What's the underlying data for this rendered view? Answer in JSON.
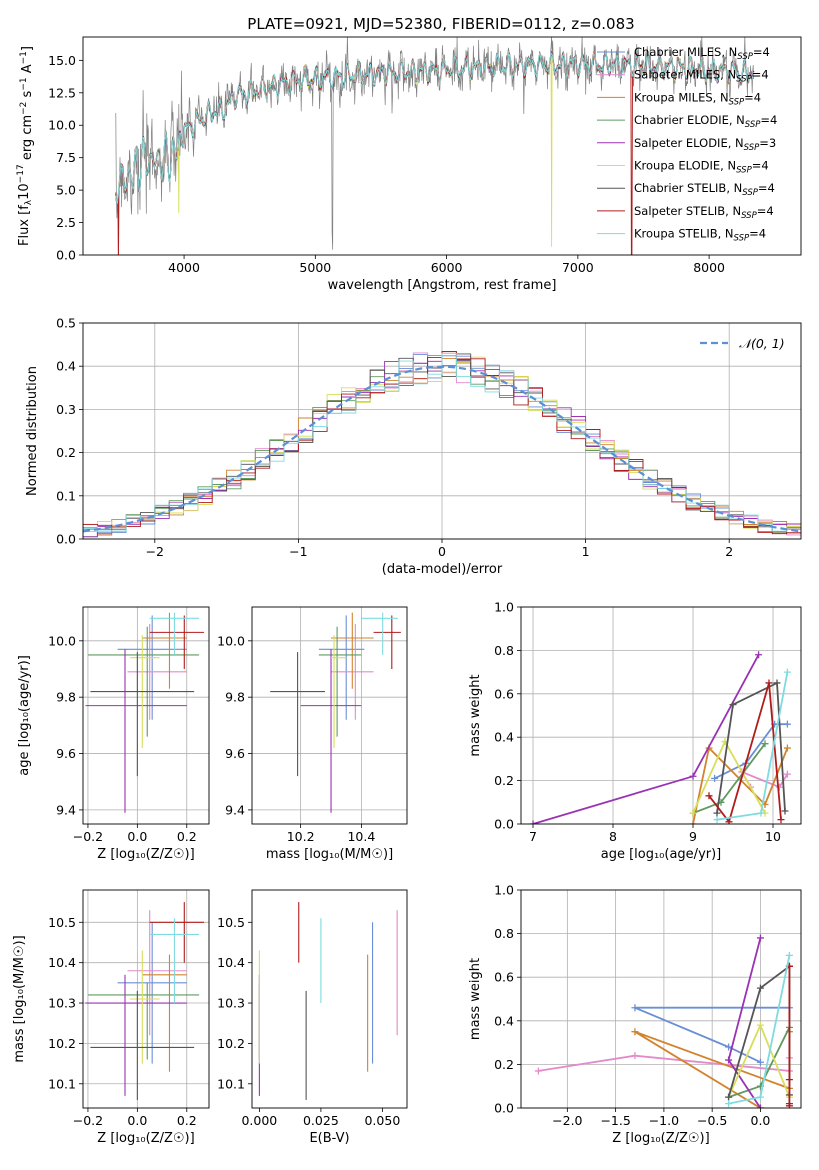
{
  "figure": {
    "title": "PLATE=0921, MJD=52380, FIBERID=0112, z=0.083"
  },
  "chart_data": [
    {
      "id": "spectrum",
      "type": "line",
      "title": "PLATE=0921, MJD=52380, FIBERID=0112, z=0.083",
      "xlabel": "wavelength [Angstrom, rest frame]",
      "ylabel_parts": [
        "Flux [f",
        "λ",
        "10",
        "−17",
        " erg cm",
        "−2",
        " s",
        "−1",
        " A",
        "−1",
        "]"
      ],
      "xlim": [
        3230,
        8700
      ],
      "ylim": [
        0,
        16.8
      ],
      "xticks": [
        4000,
        5000,
        6000,
        7000,
        8000
      ],
      "yticks": [
        0.0,
        2.5,
        5.0,
        7.5,
        10.0,
        12.5,
        15.0
      ],
      "grid": false,
      "legend_position": "right",
      "legend": [
        {
          "label": "Chabrier MILES, N",
          "sub": "SSP",
          "tail": "=4",
          "color": "#6a8fd6"
        },
        {
          "label": "Salpeter MILES, N",
          "sub": "SSP",
          "tail": "=4",
          "color": "#e48acb"
        },
        {
          "label": "Kroupa MILES, N",
          "sub": "SSP",
          "tail": "=4",
          "color": "#d2832e"
        },
        {
          "label": "Chabrier ELODIE, N",
          "sub": "SSP",
          "tail": "=4",
          "color": "#5f9a5f"
        },
        {
          "label": "Salpeter ELODIE, N",
          "sub": "SSP",
          "tail": "=3",
          "color": "#9a32b5"
        },
        {
          "label": "Kroupa ELODIE, N",
          "sub": "SSP",
          "tail": "=4",
          "color": "#d8de5c"
        },
        {
          "label": "Chabrier STELIB, N",
          "sub": "SSP",
          "tail": "=4",
          "color": "#555555"
        },
        {
          "label": "Salpeter STELIB, N",
          "sub": "SSP",
          "tail": "=4",
          "color": "#b01c1c"
        },
        {
          "label": "Kroupa STELIB, N",
          "sub": "SSP",
          "tail": "=4",
          "color": "#7fdbe0"
        }
      ],
      "data_color": "#808080",
      "continuum": [
        [
          3500,
          5.6
        ],
        [
          3600,
          6.2
        ],
        [
          3700,
          7.4
        ],
        [
          3800,
          7.2
        ],
        [
          3900,
          7.6
        ],
        [
          3960,
          8.4
        ],
        [
          4000,
          9.6
        ],
        [
          4100,
          10.2
        ],
        [
          4200,
          11.0
        ],
        [
          4300,
          11.2
        ],
        [
          4400,
          12.3
        ],
        [
          4500,
          12.6
        ],
        [
          4700,
          13.1
        ],
        [
          4900,
          13.5
        ],
        [
          5200,
          13.8
        ],
        [
          5500,
          14.0
        ],
        [
          6000,
          14.3
        ],
        [
          6500,
          14.6
        ],
        [
          7000,
          14.7
        ],
        [
          7500,
          14.6
        ],
        [
          8000,
          14.3
        ],
        [
          8300,
          14.0
        ]
      ],
      "data_range": [
        3480,
        8340
      ],
      "model_range": [
        3480,
        8340
      ],
      "dips": [
        {
          "x": 5130,
          "depth": 12.5,
          "series": "data"
        },
        {
          "x": 6800,
          "depth": 15.0,
          "series": "Kroupa ELODIE"
        },
        {
          "x": 7410,
          "depth": 14.6,
          "series": "Salpeter STELIB"
        },
        {
          "x": 3500,
          "depth": 5.6,
          "series": "Salpeter STELIB"
        },
        {
          "x": 3960,
          "depth": 5.8,
          "series": "Kroupa ELODIE"
        }
      ]
    },
    {
      "id": "residuals",
      "type": "histogram",
      "xlabel": "(data-model)/error",
      "ylabel": "Normed distribution",
      "xlim": [
        -2.5,
        2.5
      ],
      "ylim": [
        0,
        0.5
      ],
      "xticks": [
        -2,
        -1,
        0,
        1,
        2
      ],
      "yticks": [
        0.0,
        0.1,
        0.2,
        0.3,
        0.4,
        0.5
      ],
      "grid": true,
      "legend_position": "top-right",
      "legend": [
        {
          "label": "𝒩(0, 1)",
          "color": "#5b8fd6"
        }
      ],
      "bin_width": 0.1
    },
    {
      "id": "age-vs-Z",
      "type": "errorbar",
      "xlabel": "Z [log₁₀(Z/Z☉)]",
      "ylabel": "age  [log₁₀(age/yr)]",
      "xlim": [
        -0.22,
        0.29
      ],
      "ylim": [
        9.35,
        10.12
      ],
      "xticks": [
        -0.2,
        0.0,
        0.2
      ],
      "yticks": [
        9.4,
        9.6,
        9.8,
        10.0
      ],
      "grid": true
    },
    {
      "id": "age-vs-mass",
      "type": "errorbar",
      "xlabel": "mass [log₁₀(M/M☉)]",
      "ylabel": "",
      "xlim": [
        10.04,
        10.55
      ],
      "ylim": [
        9.35,
        10.12
      ],
      "xticks": [
        10.2,
        10.4
      ],
      "yticks": [
        9.4,
        9.6,
        9.8,
        10.0
      ],
      "grid": true
    },
    {
      "id": "weight-vs-age",
      "type": "line",
      "xlabel": "age  [log₁₀(age/yr)]",
      "ylabel": "mass weight",
      "xlim": [
        6.85,
        10.35
      ],
      "ylim": [
        0,
        1.0
      ],
      "xticks": [
        7,
        8,
        9,
        10
      ],
      "yticks": [
        0.0,
        0.2,
        0.4,
        0.6,
        0.8,
        1.0
      ],
      "grid": true
    },
    {
      "id": "mass-vs-Z",
      "type": "errorbar",
      "xlabel": "Z [log₁₀(Z/Z☉)]",
      "ylabel": "mass [log₁₀(M/M☉)]",
      "xlim": [
        -0.22,
        0.29
      ],
      "ylim": [
        10.04,
        10.58
      ],
      "xticks": [
        -0.2,
        0.0,
        0.2
      ],
      "yticks": [
        10.1,
        10.2,
        10.3,
        10.4,
        10.5
      ],
      "grid": true
    },
    {
      "id": "mass-vs-EBV",
      "type": "errorbar",
      "xlabel": "E(B-V)",
      "ylabel": "",
      "xlim": [
        -0.003,
        0.06
      ],
      "ylim": [
        10.04,
        10.58
      ],
      "xticks": [
        0.0,
        0.025,
        0.05
      ],
      "yticks": [
        10.1,
        10.2,
        10.3,
        10.4,
        10.5
      ],
      "grid": false
    },
    {
      "id": "weight-vs-Z",
      "type": "line",
      "xlabel": "Z [log₁₀(Z/Z☉)]",
      "ylabel": "mass weight",
      "xlim": [
        -2.48,
        0.42
      ],
      "ylim": [
        0,
        1.0
      ],
      "xticks": [
        -2.0,
        -1.5,
        -1.0,
        -0.5,
        0.0
      ],
      "yticks": [
        0.0,
        0.2,
        0.4,
        0.6,
        0.8,
        1.0
      ],
      "grid": true
    }
  ],
  "models": [
    {
      "name": "Chabrier MILES",
      "color": "#6a8fd6",
      "age": 9.97,
      "age_lo": 9.72,
      "age_hi": 10.09,
      "Z": 0.06,
      "Z_lo": -0.08,
      "Z_hi": 0.2,
      "mass": 10.35,
      "mass_lo": 10.15,
      "mass_hi": 10.5,
      "mass_elo": 10.26,
      "mass_ehi": 10.41,
      "ebv": 0.046,
      "ebv_lo": 10.15,
      "ebv_hi": 10.5,
      "ssp": [
        {
          "age": 9.27,
          "Z": 0.0,
          "w": 0.21
        },
        {
          "age": 9.66,
          "Z": -0.33,
          "w": 0.28
        },
        {
          "age": 10.02,
          "Z": -1.3,
          "w": 0.46
        },
        {
          "age": 10.18,
          "Z": 0.3,
          "w": 0.46
        }
      ]
    },
    {
      "name": "Salpeter MILES",
      "color": "#e48acb",
      "age": 9.89,
      "age_lo": 9.72,
      "age_hi": 10.06,
      "Z": 0.05,
      "Z_lo": -0.04,
      "Z_hi": 0.2,
      "mass": 10.38,
      "mass_lo": 10.22,
      "mass_hi": 10.53,
      "mass_elo": 10.3,
      "mass_ehi": 10.44,
      "ebv": 0.056,
      "ebv_lo": 10.22,
      "ebv_hi": 10.53,
      "ssp": [
        {
          "age": 9.72,
          "Z": -2.3,
          "w": 0.17
        },
        {
          "age": 9.61,
          "Z": -1.3,
          "w": 0.24
        },
        {
          "age": 10.08,
          "Z": 0.3,
          "w": 0.17
        },
        {
          "age": 10.18,
          "Z": 0.3,
          "w": 0.23
        }
      ]
    },
    {
      "name": "Kroupa MILES",
      "color": "#d2832e",
      "age": 10.01,
      "age_lo": 9.83,
      "age_hi": 10.1,
      "Z": 0.13,
      "Z_lo": 0.02,
      "Z_hi": 0.2,
      "mass": 10.37,
      "mass_lo": 10.13,
      "mass_hi": 10.42,
      "mass_elo": 10.3,
      "mass_ehi": 10.44,
      "ebv": 0.044,
      "ebv_lo": 10.13,
      "ebv_hi": 10.42,
      "ssp": [
        {
          "age": 9.0,
          "Z": 0.0,
          "w": 0.0
        },
        {
          "age": 9.2,
          "Z": -1.3,
          "w": 0.35
        },
        {
          "age": 9.9,
          "Z": 0.3,
          "w": 0.09
        },
        {
          "age": 10.18,
          "Z": 0.3,
          "w": 0.35
        }
      ]
    },
    {
      "name": "Chabrier ELODIE",
      "color": "#5f9a5f",
      "age": 9.95,
      "age_lo": 9.66,
      "age_hi": 10.05,
      "Z": 0.04,
      "Z_lo": -0.2,
      "Z_hi": 0.25,
      "mass": 10.32,
      "mass_lo": 10.16,
      "mass_hi": 10.35,
      "mass_elo": 10.26,
      "mass_ehi": 10.4,
      "ebv": 0.0,
      "ebv_lo": 10.16,
      "ebv_hi": 10.35,
      "ssp": [
        {
          "age": 9.0,
          "Z": -0.33,
          "w": 0.05
        },
        {
          "age": 9.35,
          "Z": 0.0,
          "w": 0.1
        },
        {
          "age": 9.9,
          "Z": 0.3,
          "w": 0.37
        }
      ]
    },
    {
      "name": "Salpeter ELODIE",
      "color": "#9a32b5",
      "age": 9.77,
      "age_lo": 9.39,
      "age_hi": 9.97,
      "Z": -0.05,
      "Z_lo": -0.21,
      "Z_hi": 0.2,
      "mass": 10.3,
      "mass_lo": 10.07,
      "mass_hi": 10.37,
      "mass_elo": 10.2,
      "mass_ehi": 10.4,
      "ebv": 0.0,
      "ebv_lo": 10.07,
      "ebv_hi": 10.37,
      "ssp": [
        {
          "age": 7.0,
          "Z": 0.0,
          "w": 0.0
        },
        {
          "age": 9.0,
          "Z": -0.33,
          "w": 0.22
        },
        {
          "age": 9.82,
          "Z": 0.0,
          "w": 0.78
        }
      ]
    },
    {
      "name": "Kroupa ELODIE",
      "color": "#d8de5c",
      "age": 9.94,
      "age_lo": 9.62,
      "age_hi": 10.02,
      "Z": 0.02,
      "Z_lo": -0.03,
      "Z_hi": 0.09,
      "mass": 10.31,
      "mass_lo": 10.15,
      "mass_hi": 10.43,
      "mass_elo": 10.3,
      "mass_ehi": 10.35,
      "ebv": 0.0,
      "ebv_lo": 10.15,
      "ebv_hi": 10.43,
      "ssp": [
        {
          "age": 9.0,
          "Z": -0.33,
          "w": 0.05
        },
        {
          "age": 9.4,
          "Z": 0.0,
          "w": 0.38
        },
        {
          "age": 9.9,
          "Z": 0.3,
          "w": 0.05
        }
      ]
    },
    {
      "name": "Chabrier STELIB",
      "color": "#555555",
      "age": 9.82,
      "age_lo": 9.52,
      "age_hi": 9.96,
      "Z": 0.0,
      "Z_lo": -0.19,
      "Z_hi": 0.23,
      "mass": 10.19,
      "mass_lo": 10.06,
      "mass_hi": 10.33,
      "mass_elo": 10.1,
      "mass_ehi": 10.28,
      "ebv": 0.019,
      "ebv_lo": 10.06,
      "ebv_hi": 10.33,
      "ssp": [
        {
          "age": 9.3,
          "Z": -0.33,
          "w": 0.05
        },
        {
          "age": 9.5,
          "Z": 0.0,
          "w": 0.55
        },
        {
          "age": 10.05,
          "Z": 0.3,
          "w": 0.65
        },
        {
          "age": 10.15,
          "Z": 0.3,
          "w": 0.06
        }
      ]
    },
    {
      "name": "Salpeter STELIB",
      "color": "#b01c1c",
      "age": 10.03,
      "age_lo": 9.9,
      "age_hi": 10.09,
      "Z": 0.19,
      "Z_lo": 0.05,
      "Z_hi": 0.27,
      "mass": 10.5,
      "mass_lo": 10.4,
      "mass_hi": 10.55,
      "mass_elo": 10.44,
      "mass_ehi": 10.53,
      "ebv": 0.016,
      "ebv_lo": 10.4,
      "ebv_hi": 10.55,
      "ssp": [
        {
          "age": 9.2,
          "Z": 0.3,
          "w": 0.13
        },
        {
          "age": 9.45,
          "Z": 0.3,
          "w": 0.01
        },
        {
          "age": 9.95,
          "Z": 0.3,
          "w": 0.65
        },
        {
          "age": 10.1,
          "Z": 0.3,
          "w": 0.02
        }
      ]
    },
    {
      "name": "Kroupa STELIB",
      "color": "#7fdbe0",
      "age": 10.08,
      "age_lo": 9.95,
      "age_hi": 10.1,
      "Z": 0.15,
      "Z_lo": 0.05,
      "Z_hi": 0.25,
      "mass": 10.47,
      "mass_lo": 10.3,
      "mass_hi": 10.51,
      "mass_elo": 10.4,
      "mass_ehi": 10.52,
      "ebv": 0.025,
      "ebv_lo": 10.3,
      "ebv_hi": 10.51,
      "ssp": [
        {
          "age": 9.3,
          "Z": -0.33,
          "w": 0.02
        },
        {
          "age": 9.85,
          "Z": 0.0,
          "w": 0.05
        },
        {
          "age": 10.18,
          "Z": 0.3,
          "w": 0.7
        }
      ]
    }
  ]
}
